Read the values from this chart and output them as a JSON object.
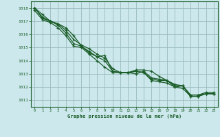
{
  "title": "Graphe pression niveau de la mer (hPa)",
  "background_color": "#cce8ec",
  "grid_color": "#99bbbb",
  "line_color": "#1a5c28",
  "xlim": [
    -0.5,
    23.5
  ],
  "ylim": [
    1010.5,
    1018.5
  ],
  "xticks": [
    0,
    1,
    2,
    3,
    4,
    5,
    6,
    7,
    8,
    9,
    10,
    11,
    12,
    13,
    14,
    15,
    16,
    17,
    18,
    19,
    20,
    21,
    22,
    23
  ],
  "yticks": [
    1011,
    1012,
    1013,
    1014,
    1015,
    1016,
    1017,
    1018
  ],
  "series": [
    [
      1018.0,
      1017.5,
      1017.0,
      1016.8,
      1016.5,
      1015.9,
      1015.1,
      1014.7,
      1014.3,
      1014.4,
      1013.2,
      1013.1,
      1013.1,
      1013.2,
      1013.1,
      1012.6,
      1012.5,
      1012.5,
      1012.0,
      1012.1,
      1011.3,
      1011.3,
      1011.5,
      1011.5
    ],
    [
      1018.0,
      1017.3,
      1017.0,
      1016.8,
      1016.3,
      1015.6,
      1015.2,
      1014.9,
      1014.5,
      1014.2,
      1013.4,
      1013.1,
      1013.1,
      1013.0,
      1013.2,
      1012.7,
      1012.6,
      1012.5,
      1012.2,
      1012.1,
      1011.4,
      1011.4,
      1011.5,
      1011.5
    ],
    [
      1018.0,
      1017.2,
      1017.0,
      1016.7,
      1016.1,
      1015.3,
      1015.1,
      1014.6,
      1014.3,
      1014.0,
      1013.2,
      1013.1,
      1013.1,
      1013.3,
      1013.3,
      1013.2,
      1012.8,
      1012.5,
      1012.1,
      1012.1,
      1011.4,
      1011.4,
      1011.6,
      1011.6
    ],
    [
      1017.8,
      1017.1,
      1016.9,
      1016.5,
      1015.9,
      1015.1,
      1015.0,
      1014.5,
      1014.0,
      1013.5,
      1013.1,
      1013.1,
      1013.1,
      1013.2,
      1013.1,
      1012.5,
      1012.4,
      1012.3,
      1012.0,
      1011.9,
      1011.3,
      1011.3,
      1011.5,
      1011.5
    ]
  ]
}
